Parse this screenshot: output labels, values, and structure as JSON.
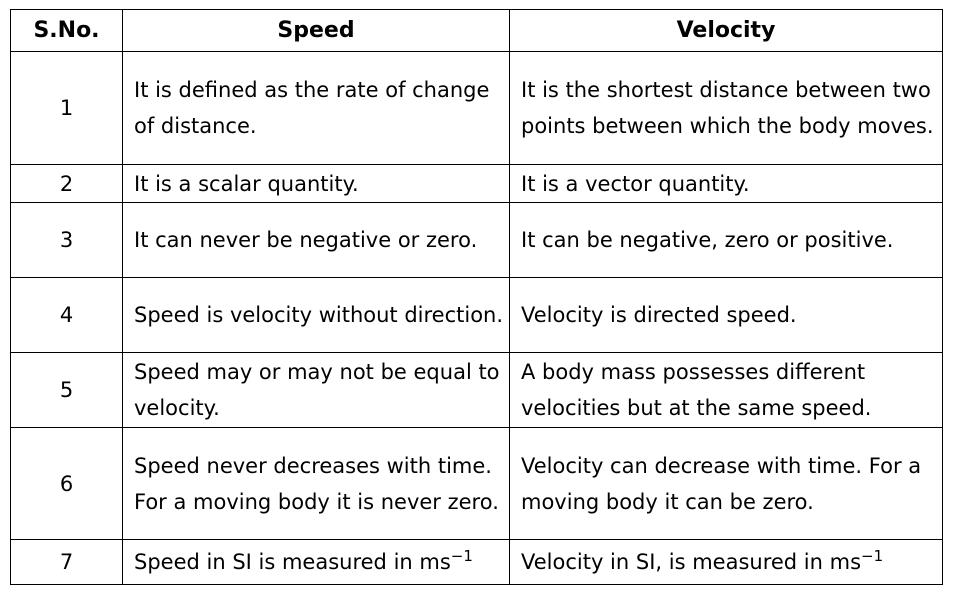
{
  "headers": {
    "sno": "S.No.",
    "speed": "Speed",
    "velocity": "Velocity"
  },
  "rows": [
    {
      "sno": "1",
      "speed": "It is defined as the rate of change of distance.",
      "velocity": "It is the shortest distance between two points between which the body moves."
    },
    {
      "sno": "2",
      "speed": "It is a scalar quantity.",
      "velocity": "It is a vector quantity."
    },
    {
      "sno": "3",
      "speed": "It can never be negative or zero.",
      "velocity": "It can be negative, zero or positive."
    },
    {
      "sno": "4",
      "speed": "Speed is velocity without direction.",
      "velocity": "Velocity is directed speed."
    },
    {
      "sno": "5",
      "speed": "Speed may or may not be equal to velocity.",
      "velocity": "A body mass possesses different velocities but at the same speed."
    },
    {
      "sno": "6",
      "speed": "Speed never decreases with time. For a moving body it is never zero.",
      "velocity": "Velocity can decrease with time. For a moving body it can be zero."
    },
    {
      "sno": "7",
      "speed": "Speed in SI is measured in ms",
      "speed_sup": "−1",
      "velocity": "Velocity in SI, is measured in ms",
      "velocity_sup": "−1"
    }
  ]
}
